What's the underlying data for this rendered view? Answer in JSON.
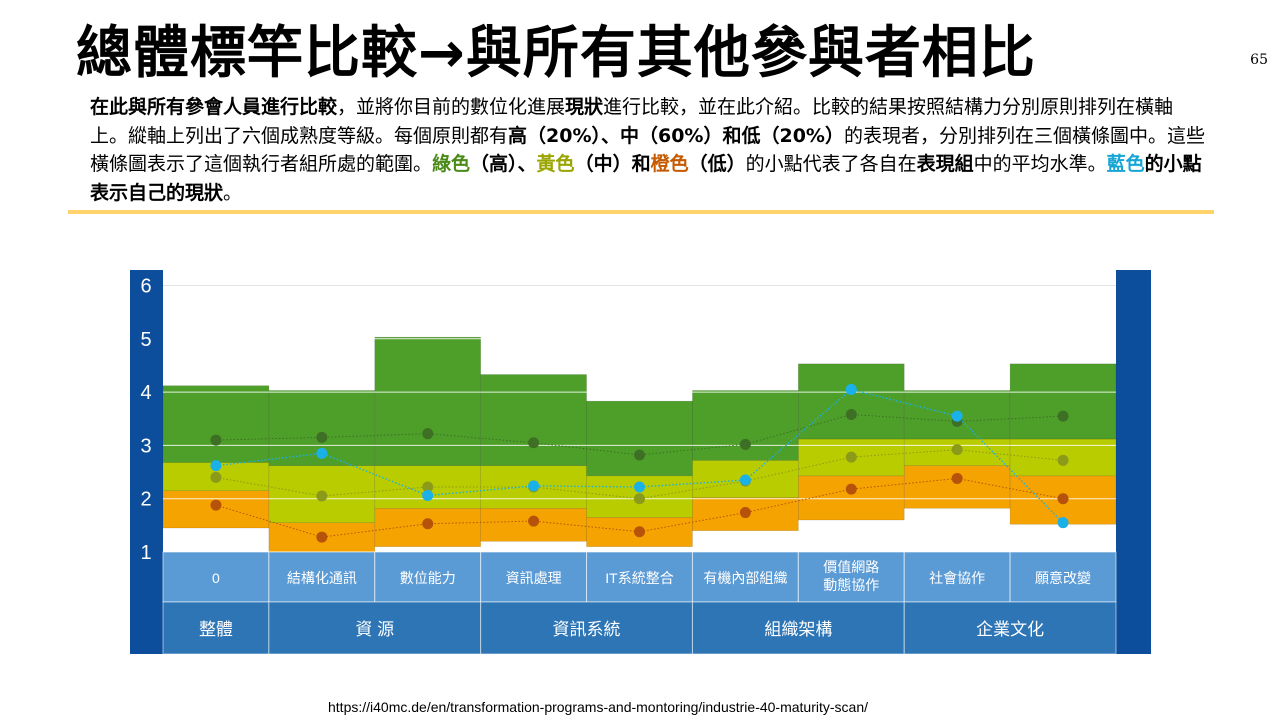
{
  "slide": {
    "title": "總體標竿比較→與所有其他參與者相比",
    "page_number": "65",
    "description": [
      {
        "text": "在此與所有參會人員進行比較",
        "style": "b"
      },
      {
        "text": "，並將你目前的數位化進展",
        "style": ""
      },
      {
        "text": "現狀",
        "style": "b"
      },
      {
        "text": "進行比較，並在此介紹。比較的結果按照結構力分別原則排列在橫軸上。縱軸上列出了六個成熟度等級。每個原則都有",
        "style": ""
      },
      {
        "text": "高（20%）、中（60%）和低（20%）",
        "style": "b"
      },
      {
        "text": "的表現者，分別排列在三個橫條圖中。這些橫條圖表示了這個執行者組所處的範圍。",
        "style": ""
      },
      {
        "text": "綠色",
        "style": "green"
      },
      {
        "text": "（高）、",
        "style": "b"
      },
      {
        "text": "黃色",
        "style": "yellow"
      },
      {
        "text": "（中）和",
        "style": "b"
      },
      {
        "text": "橙色",
        "style": "orange"
      },
      {
        "text": "（低）",
        "style": "b"
      },
      {
        "text": "的小點代表了各自在",
        "style": ""
      },
      {
        "text": "表現組",
        "style": "b"
      },
      {
        "text": "中的平均水準。",
        "style": ""
      },
      {
        "text": "藍色",
        "style": "blue"
      },
      {
        "text": "的小點表示自己的現狀",
        "style": "b"
      },
      {
        "text": "。",
        "style": ""
      }
    ],
    "source_url": "https://i40mc.de/en/transformation-programs-and-montoring/industrie-40-maturity-scan/"
  },
  "chart_data": {
    "type": "bar",
    "y_ticks": [
      "1",
      "2",
      "3",
      "4",
      "5",
      "6"
    ],
    "ylim": [
      1,
      6
    ],
    "colors": {
      "frame": "#0d4e9c",
      "high": "#4e9f29",
      "mid": "#b9cc00",
      "low": "#f5a300",
      "self": "#1ab0e8",
      "cat_row": "#5b9bd5",
      "group_row": "#2e75b6"
    },
    "categories": [
      "0",
      "結構化通訊",
      "數位能力",
      "資訊處理",
      "IT系統整合",
      "有機內部組織",
      "價值網路\n動態協作",
      "社會協作",
      "願意改變"
    ],
    "groups": [
      {
        "label": "整體",
        "span": 1
      },
      {
        "label": "資 源",
        "span": 2
      },
      {
        "label": "資訊系統",
        "span": 2
      },
      {
        "label": "組織架構",
        "span": 2
      },
      {
        "label": "企業文化",
        "span": 2
      }
    ],
    "band_ranges": {
      "low": [
        [
          1.45,
          2.15
        ],
        [
          1.0,
          1.55
        ],
        [
          1.1,
          1.82
        ],
        [
          1.2,
          1.82
        ],
        [
          1.1,
          1.65
        ],
        [
          1.4,
          2.02
        ],
        [
          1.6,
          2.43
        ],
        [
          1.82,
          2.62
        ],
        [
          1.52,
          2.43
        ]
      ],
      "mid": [
        [
          2.15,
          2.68
        ],
        [
          1.55,
          2.62
        ],
        [
          1.82,
          2.62
        ],
        [
          1.82,
          2.62
        ],
        [
          1.65,
          2.43
        ],
        [
          2.02,
          2.72
        ],
        [
          2.43,
          3.12
        ],
        [
          2.62,
          3.12
        ],
        [
          2.43,
          3.12
        ]
      ],
      "high": [
        [
          2.68,
          4.12
        ],
        [
          2.62,
          4.03
        ],
        [
          2.62,
          5.03
        ],
        [
          2.62,
          4.33
        ],
        [
          2.43,
          3.83
        ],
        [
          2.72,
          4.03
        ],
        [
          3.12,
          4.53
        ],
        [
          3.12,
          4.03
        ],
        [
          3.12,
          4.53
        ]
      ]
    },
    "series": [
      {
        "name": "高",
        "color": "#3d6f25",
        "values": [
          3.1,
          3.15,
          3.22,
          3.05,
          2.82,
          3.02,
          3.58,
          3.45,
          3.55
        ]
      },
      {
        "name": "中",
        "color": "#8c9a1a",
        "values": [
          2.4,
          2.05,
          2.22,
          2.22,
          2.0,
          2.33,
          2.78,
          2.92,
          2.72
        ]
      },
      {
        "name": "低",
        "color": "#b7520b",
        "values": [
          1.88,
          1.28,
          1.53,
          1.58,
          1.38,
          1.74,
          2.18,
          2.38,
          2.0
        ]
      },
      {
        "name": "現狀",
        "color": "#1ab0e8",
        "values": [
          2.62,
          2.85,
          2.06,
          2.24,
          2.22,
          2.35,
          4.05,
          3.55,
          1.55
        ]
      }
    ]
  }
}
